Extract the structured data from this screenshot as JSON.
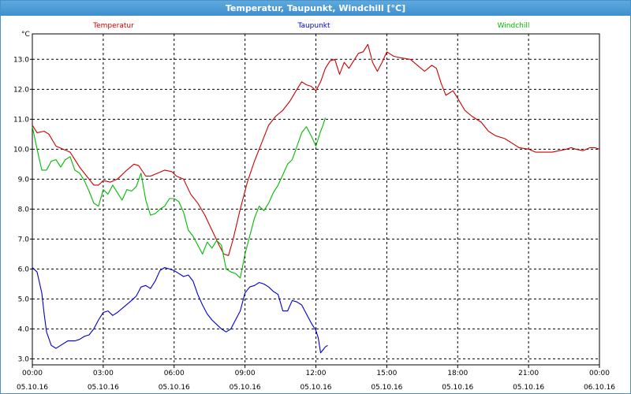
{
  "window": {
    "title": "Temperatur, Taupunkt, Windchill [°C]"
  },
  "chart_data": {
    "type": "line",
    "title": "Temperatur, Taupunkt, Windchill [°C]",
    "ylabel": "°C",
    "xlabel": "",
    "ylim": [
      2.8,
      13.85
    ],
    "xlim": [
      0,
      24
    ],
    "grid": true,
    "y_ticks": [
      3.0,
      4.0,
      5.0,
      6.0,
      7.0,
      8.0,
      9.0,
      10.0,
      11.0,
      12.0,
      13.0
    ],
    "x_ticks": [
      {
        "x": 0,
        "time": "00:00",
        "date": "05.10.16"
      },
      {
        "x": 3,
        "time": "03:00",
        "date": "05.10.16"
      },
      {
        "x": 6,
        "time": "06:00",
        "date": "05.10.16"
      },
      {
        "x": 9,
        "time": "09:00",
        "date": "05.10.16"
      },
      {
        "x": 12,
        "time": "12:00",
        "date": "05.10.16"
      },
      {
        "x": 15,
        "time": "15:00",
        "date": "05.10.16"
      },
      {
        "x": 18,
        "time": "18:00",
        "date": "05.10.16"
      },
      {
        "x": 21,
        "time": "21:00",
        "date": "05.10.16"
      },
      {
        "x": 24,
        "time": "00:00",
        "date": "06.10.16"
      }
    ],
    "series": [
      {
        "name": "Temperatur",
        "color": "#cc0000",
        "points": [
          [
            0,
            10.8
          ],
          [
            0.2,
            10.55
          ],
          [
            0.5,
            10.6
          ],
          [
            0.7,
            10.5
          ],
          [
            1.0,
            10.1
          ],
          [
            1.3,
            10.0
          ],
          [
            1.6,
            9.9
          ],
          [
            2.0,
            9.4
          ],
          [
            2.3,
            9.1
          ],
          [
            2.6,
            8.8
          ],
          [
            2.8,
            8.8
          ],
          [
            3.0,
            8.95
          ],
          [
            3.3,
            8.9
          ],
          [
            3.6,
            9.0
          ],
          [
            4.0,
            9.3
          ],
          [
            4.3,
            9.5
          ],
          [
            4.5,
            9.45
          ],
          [
            4.8,
            9.1
          ],
          [
            5.0,
            9.1
          ],
          [
            5.3,
            9.2
          ],
          [
            5.6,
            9.3
          ],
          [
            5.9,
            9.25
          ],
          [
            6.1,
            9.1
          ],
          [
            6.4,
            9.0
          ],
          [
            6.7,
            8.5
          ],
          [
            7.0,
            8.2
          ],
          [
            7.3,
            7.8
          ],
          [
            7.6,
            7.3
          ],
          [
            7.9,
            6.8
          ],
          [
            8.1,
            6.5
          ],
          [
            8.3,
            6.45
          ],
          [
            8.5,
            7.0
          ],
          [
            8.8,
            8.0
          ],
          [
            9.1,
            8.9
          ],
          [
            9.4,
            9.6
          ],
          [
            9.7,
            10.2
          ],
          [
            10.0,
            10.8
          ],
          [
            10.3,
            11.1
          ],
          [
            10.6,
            11.3
          ],
          [
            10.9,
            11.6
          ],
          [
            11.2,
            12.0
          ],
          [
            11.4,
            12.25
          ],
          [
            11.6,
            12.15
          ],
          [
            11.8,
            12.1
          ],
          [
            12.0,
            11.95
          ],
          [
            12.2,
            12.25
          ],
          [
            12.4,
            12.7
          ],
          [
            12.6,
            12.95
          ],
          [
            12.8,
            13.0
          ],
          [
            13.0,
            12.5
          ],
          [
            13.2,
            12.9
          ],
          [
            13.4,
            12.7
          ],
          [
            13.6,
            12.95
          ],
          [
            13.8,
            13.2
          ],
          [
            14.0,
            13.25
          ],
          [
            14.2,
            13.5
          ],
          [
            14.4,
            12.9
          ],
          [
            14.6,
            12.6
          ],
          [
            14.8,
            12.9
          ],
          [
            15.0,
            13.25
          ],
          [
            15.3,
            13.1
          ],
          [
            15.6,
            13.05
          ],
          [
            16.0,
            13.0
          ],
          [
            16.3,
            12.8
          ],
          [
            16.6,
            12.6
          ],
          [
            16.9,
            12.8
          ],
          [
            17.1,
            12.7
          ],
          [
            17.3,
            12.2
          ],
          [
            17.5,
            11.8
          ],
          [
            17.8,
            11.95
          ],
          [
            18.0,
            11.7
          ],
          [
            18.3,
            11.3
          ],
          [
            18.6,
            11.1
          ],
          [
            19.0,
            10.9
          ],
          [
            19.3,
            10.6
          ],
          [
            19.6,
            10.45
          ],
          [
            20.0,
            10.35
          ],
          [
            20.3,
            10.2
          ],
          [
            20.6,
            10.05
          ],
          [
            21.0,
            10.0
          ],
          [
            21.3,
            9.9
          ],
          [
            21.6,
            9.9
          ],
          [
            22.0,
            9.9
          ],
          [
            22.3,
            9.95
          ],
          [
            22.6,
            10.0
          ],
          [
            22.8,
            10.05
          ],
          [
            23.0,
            10.0
          ],
          [
            23.3,
            9.95
          ],
          [
            23.6,
            10.05
          ],
          [
            23.8,
            10.05
          ],
          [
            24.0,
            10.0
          ]
        ]
      },
      {
        "name": "Taupunkt",
        "color": "#0000cc",
        "points": [
          [
            0,
            6.05
          ],
          [
            0.2,
            5.9
          ],
          [
            0.4,
            5.2
          ],
          [
            0.5,
            4.5
          ],
          [
            0.6,
            3.9
          ],
          [
            0.8,
            3.45
          ],
          [
            1.0,
            3.35
          ],
          [
            1.2,
            3.45
          ],
          [
            1.5,
            3.6
          ],
          [
            1.8,
            3.6
          ],
          [
            2.0,
            3.65
          ],
          [
            2.2,
            3.75
          ],
          [
            2.4,
            3.8
          ],
          [
            2.6,
            4.0
          ],
          [
            2.8,
            4.3
          ],
          [
            3.0,
            4.55
          ],
          [
            3.2,
            4.6
          ],
          [
            3.4,
            4.45
          ],
          [
            3.6,
            4.55
          ],
          [
            3.9,
            4.75
          ],
          [
            4.2,
            4.95
          ],
          [
            4.4,
            5.1
          ],
          [
            4.6,
            5.4
          ],
          [
            4.8,
            5.45
          ],
          [
            5.0,
            5.35
          ],
          [
            5.2,
            5.6
          ],
          [
            5.4,
            5.95
          ],
          [
            5.6,
            6.05
          ],
          [
            5.8,
            6.0
          ],
          [
            6.0,
            5.95
          ],
          [
            6.2,
            5.85
          ],
          [
            6.4,
            5.75
          ],
          [
            6.6,
            5.8
          ],
          [
            6.8,
            5.6
          ],
          [
            7.0,
            5.15
          ],
          [
            7.2,
            4.8
          ],
          [
            7.4,
            4.5
          ],
          [
            7.6,
            4.3
          ],
          [
            7.8,
            4.15
          ],
          [
            8.0,
            4.0
          ],
          [
            8.2,
            3.9
          ],
          [
            8.4,
            4.0
          ],
          [
            8.6,
            4.3
          ],
          [
            8.8,
            4.6
          ],
          [
            9.0,
            5.2
          ],
          [
            9.2,
            5.4
          ],
          [
            9.4,
            5.45
          ],
          [
            9.6,
            5.55
          ],
          [
            9.8,
            5.5
          ],
          [
            10.0,
            5.4
          ],
          [
            10.2,
            5.25
          ],
          [
            10.4,
            5.15
          ],
          [
            10.6,
            4.6
          ],
          [
            10.8,
            4.6
          ],
          [
            11.0,
            4.95
          ],
          [
            11.2,
            4.9
          ],
          [
            11.4,
            4.8
          ],
          [
            11.6,
            4.5
          ],
          [
            11.8,
            4.2
          ],
          [
            12.0,
            3.95
          ],
          [
            12.1,
            3.7
          ],
          [
            12.2,
            3.2
          ],
          [
            12.3,
            3.3
          ],
          [
            12.4,
            3.4
          ],
          [
            12.5,
            3.45
          ]
        ]
      },
      {
        "name": "Windchill",
        "color": "#00bb00",
        "points": [
          [
            0,
            10.75
          ],
          [
            0.2,
            10.0
          ],
          [
            0.4,
            9.3
          ],
          [
            0.6,
            9.3
          ],
          [
            0.8,
            9.6
          ],
          [
            1.0,
            9.65
          ],
          [
            1.2,
            9.4
          ],
          [
            1.4,
            9.65
          ],
          [
            1.6,
            9.75
          ],
          [
            1.8,
            9.3
          ],
          [
            2.0,
            9.2
          ],
          [
            2.2,
            8.95
          ],
          [
            2.4,
            8.6
          ],
          [
            2.6,
            8.2
          ],
          [
            2.8,
            8.1
          ],
          [
            3.0,
            8.65
          ],
          [
            3.2,
            8.5
          ],
          [
            3.4,
            8.8
          ],
          [
            3.6,
            8.55
          ],
          [
            3.8,
            8.3
          ],
          [
            4.0,
            8.65
          ],
          [
            4.2,
            8.6
          ],
          [
            4.4,
            8.75
          ],
          [
            4.6,
            9.2
          ],
          [
            4.8,
            8.3
          ],
          [
            5.0,
            7.8
          ],
          [
            5.2,
            7.85
          ],
          [
            5.4,
            8.0
          ],
          [
            5.6,
            8.1
          ],
          [
            5.8,
            8.35
          ],
          [
            6.0,
            8.35
          ],
          [
            6.2,
            8.25
          ],
          [
            6.4,
            7.9
          ],
          [
            6.6,
            7.3
          ],
          [
            6.8,
            7.1
          ],
          [
            7.0,
            6.8
          ],
          [
            7.2,
            6.5
          ],
          [
            7.4,
            6.9
          ],
          [
            7.6,
            6.7
          ],
          [
            7.8,
            6.95
          ],
          [
            8.0,
            6.8
          ],
          [
            8.2,
            6.0
          ],
          [
            8.4,
            5.9
          ],
          [
            8.6,
            5.85
          ],
          [
            8.8,
            5.7
          ],
          [
            9.0,
            6.5
          ],
          [
            9.2,
            7.1
          ],
          [
            9.4,
            7.7
          ],
          [
            9.6,
            8.1
          ],
          [
            9.8,
            7.95
          ],
          [
            10.0,
            8.2
          ],
          [
            10.2,
            8.55
          ],
          [
            10.4,
            8.8
          ],
          [
            10.6,
            9.15
          ],
          [
            10.8,
            9.5
          ],
          [
            11.0,
            9.65
          ],
          [
            11.2,
            10.1
          ],
          [
            11.4,
            10.55
          ],
          [
            11.6,
            10.75
          ],
          [
            11.8,
            10.45
          ],
          [
            12.0,
            10.1
          ],
          [
            12.2,
            10.6
          ],
          [
            12.3,
            10.8
          ],
          [
            12.4,
            11.05
          ]
        ]
      }
    ]
  }
}
